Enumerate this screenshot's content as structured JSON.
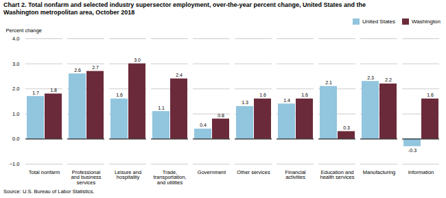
{
  "chart_data": {
    "type": "bar",
    "title": "Chart 2. Total nonfarm and selected industry supersector employment, over-the-year percent change, United States and the\nWashington metropolitan area, October 2018",
    "ylabel": "Percent change",
    "caption": "Source: U.S. Bureau of Labor Statistics.",
    "categories": [
      "Total nonfarm",
      "Professional\nand business\nservices",
      "Leisure and\nhospitality",
      "Trade,\ntransportation,\nand utilities",
      "Government",
      "Other services",
      "Financial\nactivities",
      "Education and\nhealth services",
      "Manufacturing",
      "Information"
    ],
    "series": [
      {
        "name": "United States",
        "color": "#92C5DE",
        "values": [
          1.7,
          2.6,
          1.6,
          1.1,
          0.4,
          1.3,
          1.4,
          2.1,
          2.3,
          -0.3
        ],
        "value_labels": [
          "1.7",
          "2.6",
          "1.6",
          "1.1",
          "0.4",
          "1.3",
          "1.4",
          "2.1",
          "2.3",
          "-0.3"
        ]
      },
      {
        "name": "Washington",
        "color": "#6B2A3A",
        "values": [
          1.8,
          2.7,
          3.0,
          2.4,
          0.8,
          1.6,
          1.6,
          0.3,
          2.2,
          1.6
        ],
        "value_labels": [
          "1.8",
          "2.7",
          "3.0",
          "2.4",
          "0.8",
          "1.6",
          "1.6",
          "0.3",
          "2.2",
          "1.6"
        ]
      }
    ],
    "ylim": [
      -1.0,
      4.0
    ],
    "yticks": [
      {
        "value": -1.0,
        "label": "−1.0"
      },
      {
        "value": 0.0,
        "label": "0.0"
      },
      {
        "value": 1.0,
        "label": "1.0"
      },
      {
        "value": 2.0,
        "label": "2.0"
      },
      {
        "value": 3.0,
        "label": "3.0"
      },
      {
        "value": 4.0,
        "label": "4.0"
      }
    ],
    "grid": true,
    "legend": "upper right",
    "data_labels": true
  }
}
